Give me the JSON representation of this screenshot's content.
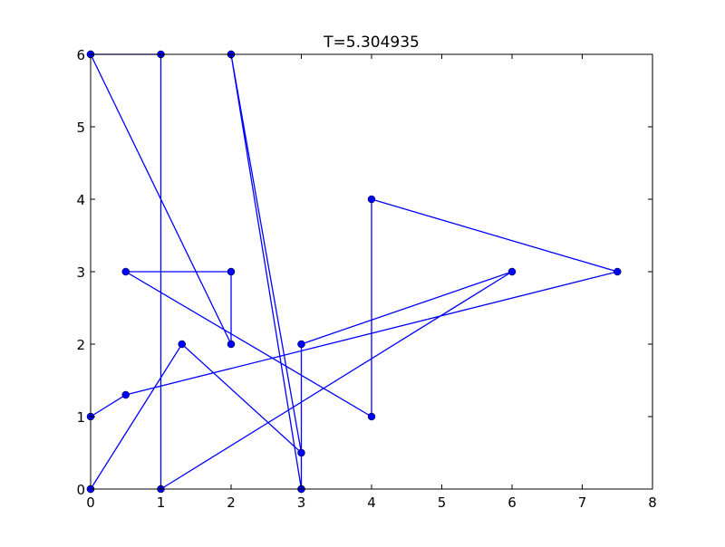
{
  "chart_data": {
    "type": "line",
    "title": "T=5.304935",
    "xlabel": "",
    "ylabel": "",
    "xlim": [
      0,
      8
    ],
    "ylim": [
      0,
      6
    ],
    "xticks": [
      0,
      1,
      2,
      3,
      4,
      5,
      6,
      7,
      8
    ],
    "yticks": [
      0,
      1,
      2,
      3,
      4,
      5,
      6
    ],
    "grid": false,
    "legend": "none",
    "series": [
      {
        "color": "#0000ff",
        "marker": "circle",
        "points": [
          [
            0,
            1
          ],
          [
            0.5,
            1.3
          ],
          [
            7.5,
            3
          ],
          [
            4,
            4
          ],
          [
            4,
            1
          ],
          [
            0.5,
            3
          ],
          [
            2,
            3
          ],
          [
            2,
            2
          ],
          [
            0,
            6
          ],
          [
            0,
            6
          ],
          [
            1,
            6
          ],
          [
            1,
            0
          ],
          [
            6,
            3
          ],
          [
            3,
            2
          ],
          [
            3,
            0
          ],
          [
            3,
            0
          ],
          [
            2,
            6
          ],
          [
            2,
            6
          ],
          [
            3,
            0.5
          ],
          [
            1.3,
            2
          ],
          [
            0,
            0
          ],
          [
            0,
            0
          ]
        ]
      }
    ]
  }
}
